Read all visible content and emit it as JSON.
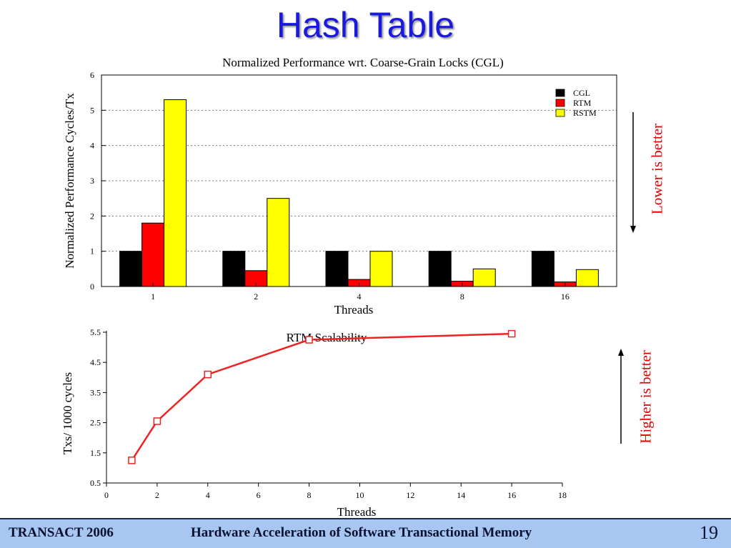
{
  "slide": {
    "title": "Hash Table",
    "note_top": "Lower is better",
    "note_bottom": "Higher is better",
    "footer_left": "TRANSACT 2006",
    "footer_center": "Hardware Acceleration of Software Transactional Memory",
    "page_number": "19"
  },
  "colors": {
    "cgl": "#000000",
    "rtm": "#ff0000",
    "rstm": "#ffff00",
    "line": "#ee2222",
    "note": "#e00000"
  },
  "chart_data": [
    {
      "type": "bar",
      "title": "Normalized Performance wrt. Coarse-Grain Locks (CGL)",
      "xlabel": "Threads",
      "ylabel": "Normalized Performance Cycles/Tx",
      "categories": [
        "1",
        "2",
        "4",
        "8",
        "16"
      ],
      "ylim": [
        0,
        6
      ],
      "yticks": [
        "0",
        "1",
        "2",
        "3",
        "4",
        "5",
        "6"
      ],
      "grid": true,
      "legend": "top-right",
      "series": [
        {
          "name": "CGL",
          "values": [
            1.0,
            1.0,
            1.0,
            1.0,
            1.0
          ]
        },
        {
          "name": "RTM",
          "values": [
            1.8,
            0.45,
            0.2,
            0.15,
            0.13
          ]
        },
        {
          "name": "RSTM",
          "values": [
            5.3,
            2.5,
            1.0,
            0.5,
            0.48
          ]
        }
      ]
    },
    {
      "type": "line",
      "title": "RTM Scalability",
      "xlabel": "Threads",
      "ylabel": "Txs/ 1000 cycles",
      "xlim": [
        0,
        18
      ],
      "ylim": [
        0.5,
        5.5
      ],
      "xticks": [
        "0",
        "2",
        "4",
        "6",
        "8",
        "10",
        "12",
        "14",
        "16",
        "18"
      ],
      "yticks": [
        "0.5",
        "1.5",
        "2.5",
        "3.5",
        "4.5",
        "5.5"
      ],
      "x": [
        1,
        2,
        4,
        8,
        16
      ],
      "y": [
        1.25,
        2.55,
        4.1,
        5.25,
        5.45
      ]
    }
  ]
}
